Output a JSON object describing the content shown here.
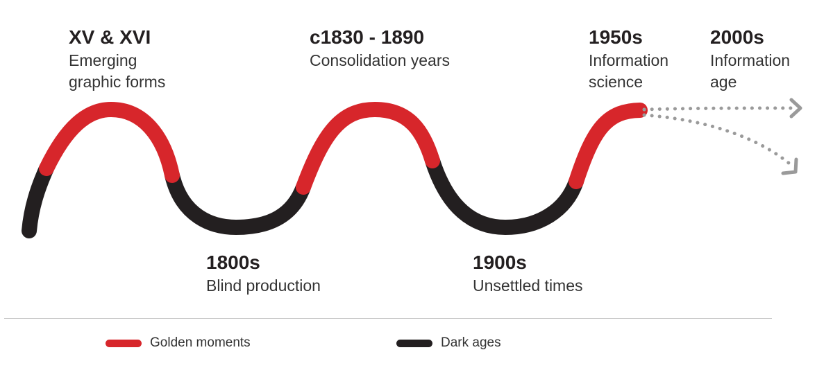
{
  "colors": {
    "golden": "#d7262b",
    "dark": "#231f20",
    "future": "#9a9a9a"
  },
  "eras": [
    {
      "period": "XV & XVI",
      "label": "Emerging\ngraphic forms",
      "phase": "golden"
    },
    {
      "period": "1800s",
      "label": "Blind production",
      "phase": "dark"
    },
    {
      "period": "c1830 - 1890",
      "label": "Consolidation years",
      "phase": "golden"
    },
    {
      "period": "1900s",
      "label": "Unsettled times",
      "phase": "dark"
    },
    {
      "period": "1950s",
      "label": "Information\nscience",
      "phase": "golden"
    },
    {
      "period": "2000s",
      "label": "Information\nage",
      "phase": "future"
    }
  ],
  "legend": [
    {
      "label": "Golden moments",
      "color_key": "golden"
    },
    {
      "label": "Dark ages",
      "color_key": "dark"
    }
  ]
}
